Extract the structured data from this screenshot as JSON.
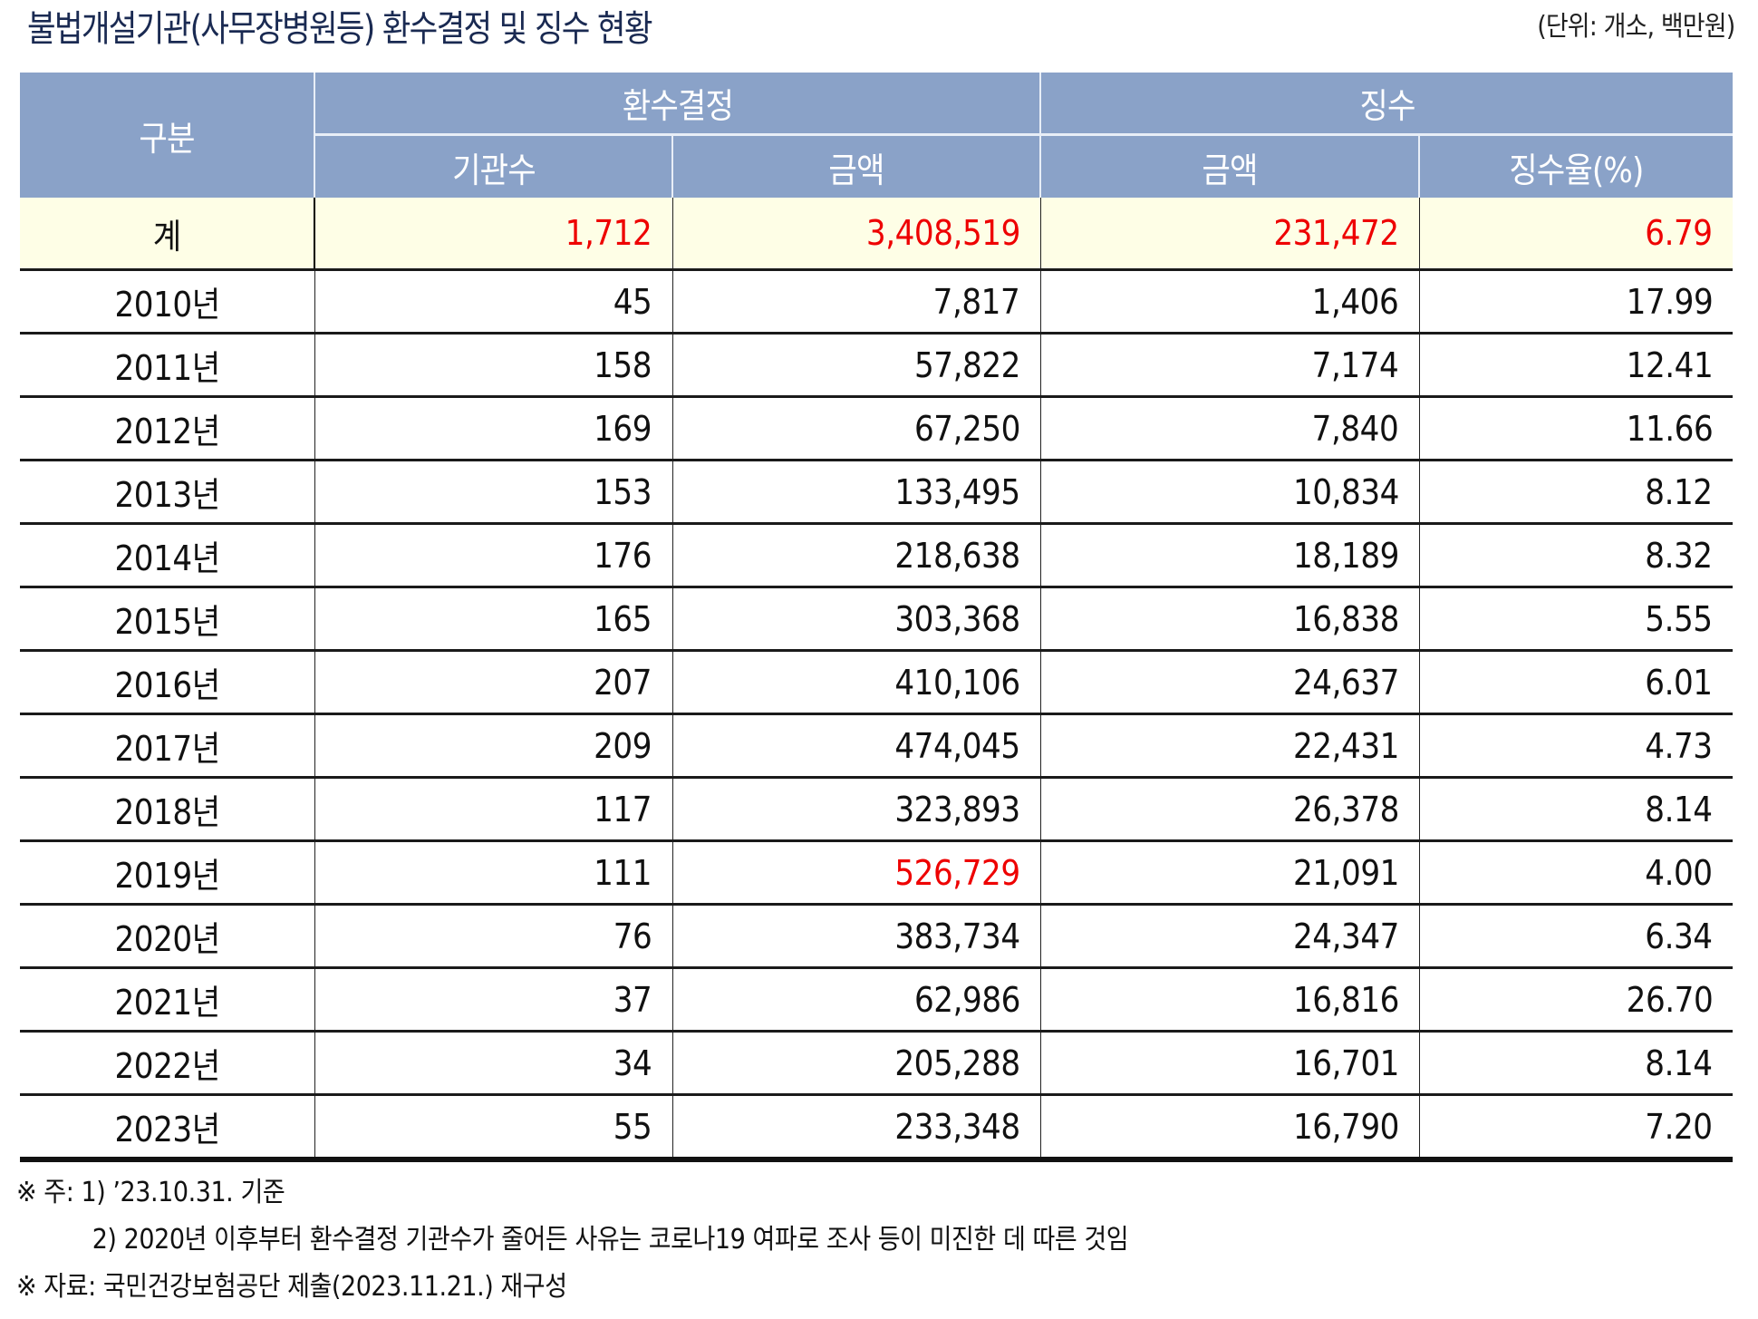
{
  "title": "불법개설기관(사무장병원등) 환수결정 및 징수 현황",
  "unit": "(단위: 개소, 백만원)",
  "colors": {
    "header_bg": "#8aa2c8",
    "total_row_bg": "#fefee6",
    "highlight_red": "#ee0000",
    "title_color": "#1a2a52"
  },
  "table": {
    "header": {
      "category": "구분",
      "group_recovery": "환수결정",
      "group_collection": "징수",
      "sub_institutions": "기관수",
      "sub_amount_recovery": "금액",
      "sub_amount_collection": "금액",
      "sub_rate": "징수율(%)"
    },
    "total": {
      "label": "계",
      "institutions": "1,712",
      "recovery_amount": "3,408,519",
      "collection_amount": "231,472",
      "collection_rate": "6.79"
    },
    "rows": [
      {
        "year": "2010년",
        "institutions": "45",
        "recovery_amount": "7,817",
        "collection_amount": "1,406",
        "collection_rate": "17.99"
      },
      {
        "year": "2011년",
        "institutions": "158",
        "recovery_amount": "57,822",
        "collection_amount": "7,174",
        "collection_rate": "12.41"
      },
      {
        "year": "2012년",
        "institutions": "169",
        "recovery_amount": "67,250",
        "collection_amount": "7,840",
        "collection_rate": "11.66"
      },
      {
        "year": "2013년",
        "institutions": "153",
        "recovery_amount": "133,495",
        "collection_amount": "10,834",
        "collection_rate": "8.12"
      },
      {
        "year": "2014년",
        "institutions": "176",
        "recovery_amount": "218,638",
        "collection_amount": "18,189",
        "collection_rate": "8.32"
      },
      {
        "year": "2015년",
        "institutions": "165",
        "recovery_amount": "303,368",
        "collection_amount": "16,838",
        "collection_rate": "5.55"
      },
      {
        "year": "2016년",
        "institutions": "207",
        "recovery_amount": "410,106",
        "collection_amount": "24,637",
        "collection_rate": "6.01"
      },
      {
        "year": "2017년",
        "institutions": "209",
        "recovery_amount": "474,045",
        "collection_amount": "22,431",
        "collection_rate": "4.73"
      },
      {
        "year": "2018년",
        "institutions": "117",
        "recovery_amount": "323,893",
        "collection_amount": "26,378",
        "collection_rate": "8.14"
      },
      {
        "year": "2019년",
        "institutions": "111",
        "recovery_amount": "526,729",
        "collection_amount": "21,091",
        "collection_rate": "4.00",
        "recovery_amount_highlight": true
      },
      {
        "year": "2020년",
        "institutions": "76",
        "recovery_amount": "383,734",
        "collection_amount": "24,347",
        "collection_rate": "6.34"
      },
      {
        "year": "2021년",
        "institutions": "37",
        "recovery_amount": "62,986",
        "collection_amount": "16,816",
        "collection_rate": "26.70"
      },
      {
        "year": "2022년",
        "institutions": "34",
        "recovery_amount": "205,288",
        "collection_amount": "16,701",
        "collection_rate": "8.14"
      },
      {
        "year": "2023년",
        "institutions": "55",
        "recovery_amount": "233,348",
        "collection_amount": "16,790",
        "collection_rate": "7.20"
      }
    ]
  },
  "notes": {
    "note1": "※ 주: 1) ’23.10.31. 기준",
    "note2": "2) 2020년 이후부터 환수결정 기관수가 줄어든 사유는 코로나19 여파로 조사 등이 미진한 데 따른 것임",
    "source": "※ 자료:  국민건강보험공단 제출(2023.11.21.) 재구성"
  }
}
